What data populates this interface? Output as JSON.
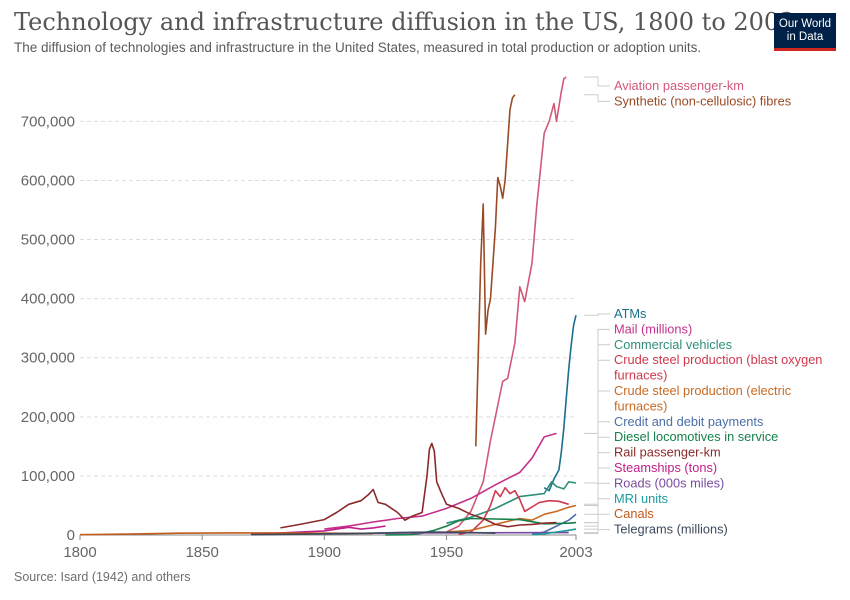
{
  "header": {
    "title": "Technology and infrastructure diffusion in the US, 1800 to 2003",
    "subtitle": "The diffusion of technologies and infrastructure in the United States, measured in total production or adoption units.",
    "logo_line1": "Our World",
    "logo_line2": "in Data"
  },
  "footer": {
    "source": "Source: Isard (1942) and others"
  },
  "chart_data": {
    "type": "line",
    "xlim": [
      1800,
      2003
    ],
    "ylim": [
      0,
      770000
    ],
    "x_ticks": [
      {
        "value": 1800,
        "label": "1800"
      },
      {
        "value": 1850,
        "label": "1850"
      },
      {
        "value": 1900,
        "label": "1900"
      },
      {
        "value": 1950,
        "label": "1950"
      },
      {
        "value": 2003,
        "label": "2003"
      }
    ],
    "y_ticks": [
      {
        "value": 0,
        "label": "0"
      },
      {
        "value": 100000,
        "label": "100,000"
      },
      {
        "value": 200000,
        "label": "200,000"
      },
      {
        "value": 300000,
        "label": "300,000"
      },
      {
        "value": 400000,
        "label": "400,000"
      },
      {
        "value": 500000,
        "label": "500,000"
      },
      {
        "value": 600000,
        "label": "600,000"
      },
      {
        "value": 700000,
        "label": "700,000"
      }
    ],
    "grid": "horizontal-dashed",
    "legend_position": "right",
    "series": [
      {
        "name": "Aviation passenger-km",
        "color": "#d05a78",
        "label_lines": [
          "Aviation passenger-km"
        ],
        "points": [
          [
            1950,
            5000
          ],
          [
            1955,
            15000
          ],
          [
            1960,
            40000
          ],
          [
            1965,
            90000
          ],
          [
            1968,
            160000
          ],
          [
            1970,
            200000
          ],
          [
            1973,
            260000
          ],
          [
            1975,
            265000
          ],
          [
            1978,
            325000
          ],
          [
            1980,
            420000
          ],
          [
            1982,
            395000
          ],
          [
            1985,
            460000
          ],
          [
            1987,
            560000
          ],
          [
            1990,
            680000
          ],
          [
            1992,
            700000
          ],
          [
            1994,
            730000
          ],
          [
            1995,
            700000
          ],
          [
            1997,
            750000
          ],
          [
            1998,
            772000
          ],
          [
            1999,
            775000
          ]
        ]
      },
      {
        "name": "Synthetic (non-cellulosic) fibres",
        "color": "#9a4a24",
        "label_lines": [
          "Synthetic (non-cellulosic) fibres"
        ],
        "points": [
          [
            1962,
            150000
          ],
          [
            1964,
            460000
          ],
          [
            1965,
            560000
          ],
          [
            1966,
            340000
          ],
          [
            1967,
            380000
          ],
          [
            1968,
            400000
          ],
          [
            1970,
            520000
          ],
          [
            1971,
            605000
          ],
          [
            1972,
            590000
          ],
          [
            1973,
            570000
          ],
          [
            1974,
            600000
          ],
          [
            1976,
            720000
          ],
          [
            1977,
            740000
          ],
          [
            1978,
            745000
          ]
        ]
      },
      {
        "name": "ATMs",
        "color": "#1a6f8c",
        "label_lines": [
          "ATMs"
        ],
        "points": [
          [
            1990,
            80000
          ],
          [
            1992,
            75000
          ],
          [
            1994,
            95000
          ],
          [
            1996,
            110000
          ],
          [
            1997,
            140000
          ],
          [
            1998,
            180000
          ],
          [
            1999,
            230000
          ],
          [
            2000,
            280000
          ],
          [
            2001,
            320000
          ],
          [
            2002,
            355000
          ],
          [
            2003,
            372000
          ]
        ]
      },
      {
        "name": "Mail (millions)",
        "color": "#c4308a",
        "label_lines": [
          "Mail (millions)"
        ],
        "points": [
          [
            1900,
            10000
          ],
          [
            1910,
            15000
          ],
          [
            1920,
            22000
          ],
          [
            1930,
            28000
          ],
          [
            1940,
            32000
          ],
          [
            1950,
            45000
          ],
          [
            1960,
            62000
          ],
          [
            1970,
            85000
          ],
          [
            1980,
            106000
          ],
          [
            1985,
            130000
          ],
          [
            1990,
            166000
          ],
          [
            1995,
            172000
          ]
        ]
      },
      {
        "name": "Commercial vehicles",
        "color": "#2f8f7a",
        "label_lines": [
          "Commercial vehicles"
        ],
        "points": [
          [
            1950,
            20000
          ],
          [
            1960,
            30000
          ],
          [
            1970,
            45000
          ],
          [
            1980,
            65000
          ],
          [
            1990,
            70000
          ],
          [
            1993,
            90000
          ],
          [
            1995,
            82000
          ],
          [
            1998,
            78000
          ],
          [
            2000,
            90000
          ],
          [
            2003,
            88000
          ]
        ]
      },
      {
        "name": "Crude steel production (blast oxygen furnaces)",
        "color": "#d0384d",
        "label_lines": [
          "Crude steel production (blast oxygen",
          "furnaces)"
        ],
        "points": [
          [
            1955,
            1000
          ],
          [
            1960,
            5000
          ],
          [
            1965,
            25000
          ],
          [
            1968,
            50000
          ],
          [
            1970,
            75000
          ],
          [
            1972,
            65000
          ],
          [
            1974,
            80000
          ],
          [
            1976,
            70000
          ],
          [
            1978,
            75000
          ],
          [
            1980,
            60000
          ],
          [
            1982,
            40000
          ],
          [
            1984,
            45000
          ],
          [
            1988,
            55000
          ],
          [
            1992,
            58000
          ],
          [
            1996,
            57000
          ],
          [
            2000,
            52000
          ]
        ]
      },
      {
        "name": "Crude steel production (electric furnaces)",
        "color": "#c86a24",
        "label_lines": [
          "Crude steel production (electric",
          "furnaces)"
        ],
        "points": [
          [
            1950,
            5000
          ],
          [
            1960,
            8000
          ],
          [
            1970,
            18000
          ],
          [
            1980,
            28000
          ],
          [
            1985,
            25000
          ],
          [
            1990,
            35000
          ],
          [
            1995,
            40000
          ],
          [
            2000,
            47000
          ],
          [
            2003,
            50000
          ]
        ]
      },
      {
        "name": "Credit and debit payments",
        "color": "#4c6fa8",
        "label_lines": [
          "Credit and debit payments"
        ],
        "points": [
          [
            1985,
            1000
          ],
          [
            1990,
            5000
          ],
          [
            1995,
            15000
          ],
          [
            2000,
            25000
          ],
          [
            2003,
            35000
          ]
        ]
      },
      {
        "name": "Diesel locomotives in service",
        "color": "#16804a",
        "label_lines": [
          "Diesel locomotives in service"
        ],
        "points": [
          [
            1925,
            100
          ],
          [
            1935,
            500
          ],
          [
            1940,
            3000
          ],
          [
            1945,
            8000
          ],
          [
            1950,
            15000
          ],
          [
            1955,
            24000
          ],
          [
            1960,
            28000
          ],
          [
            1970,
            27000
          ],
          [
            1980,
            26000
          ],
          [
            1990,
            19000
          ],
          [
            2000,
            20000
          ],
          [
            2003,
            21000
          ]
        ]
      },
      {
        "name": "Rail passenger-km",
        "color": "#8b2a2a",
        "label_lines": [
          "Rail passenger-km"
        ],
        "points": [
          [
            1882,
            12000
          ],
          [
            1890,
            18000
          ],
          [
            1895,
            22000
          ],
          [
            1900,
            26000
          ],
          [
            1905,
            38000
          ],
          [
            1910,
            52000
          ],
          [
            1915,
            58000
          ],
          [
            1918,
            68000
          ],
          [
            1920,
            77000
          ],
          [
            1922,
            55000
          ],
          [
            1925,
            52000
          ],
          [
            1930,
            38000
          ],
          [
            1933,
            25000
          ],
          [
            1936,
            32000
          ],
          [
            1940,
            38000
          ],
          [
            1942,
            100000
          ],
          [
            1943,
            145000
          ],
          [
            1944,
            155000
          ],
          [
            1945,
            142000
          ],
          [
            1946,
            90000
          ],
          [
            1948,
            70000
          ],
          [
            1950,
            52000
          ],
          [
            1955,
            45000
          ],
          [
            1960,
            35000
          ],
          [
            1965,
            28000
          ],
          [
            1970,
            18000
          ],
          [
            1975,
            14000
          ],
          [
            1980,
            17000
          ],
          [
            1985,
            18000
          ],
          [
            1990,
            20000
          ],
          [
            1995,
            21000
          ]
        ]
      },
      {
        "name": "Steamships (tons)",
        "color": "#c0208a",
        "label_lines": [
          "Steamships (tons)"
        ],
        "points": [
          [
            1870,
            1000
          ],
          [
            1880,
            3000
          ],
          [
            1890,
            5000
          ],
          [
            1900,
            7000
          ],
          [
            1905,
            10000
          ],
          [
            1910,
            13000
          ],
          [
            1915,
            10000
          ],
          [
            1920,
            12000
          ],
          [
            1925,
            15000
          ]
        ]
      },
      {
        "name": "Roads (000s miles)",
        "color": "#7a4aa0",
        "label_lines": [
          "Roads (000s miles)"
        ],
        "points": [
          [
            1900,
            2000
          ],
          [
            1920,
            3000
          ],
          [
            1940,
            3500
          ],
          [
            1960,
            3800
          ],
          [
            1980,
            3900
          ],
          [
            2000,
            4000
          ]
        ]
      },
      {
        "name": "MRI units",
        "color": "#1b9c9c",
        "label_lines": [
          "MRI units"
        ],
        "points": [
          [
            1985,
            500
          ],
          [
            1990,
            2000
          ],
          [
            1995,
            5000
          ],
          [
            2000,
            8000
          ],
          [
            2003,
            10000
          ]
        ]
      },
      {
        "name": "Canals",
        "color": "#c25a1a",
        "label_lines": [
          "Canals"
        ],
        "points": [
          [
            1800,
            500
          ],
          [
            1820,
            1500
          ],
          [
            1840,
            3000
          ],
          [
            1860,
            3500
          ],
          [
            1880,
            3500
          ],
          [
            1900,
            3000
          ],
          [
            1920,
            2500
          ]
        ]
      },
      {
        "name": "Telegrams (millions)",
        "color": "#3d4a5c",
        "label_lines": [
          "Telegrams (millions)"
        ],
        "points": [
          [
            1870,
            500
          ],
          [
            1880,
            1000
          ],
          [
            1900,
            2000
          ],
          [
            1920,
            3000
          ],
          [
            1930,
            4000
          ],
          [
            1945,
            5000
          ],
          [
            1960,
            4000
          ],
          [
            1970,
            3000
          ]
        ]
      }
    ]
  }
}
